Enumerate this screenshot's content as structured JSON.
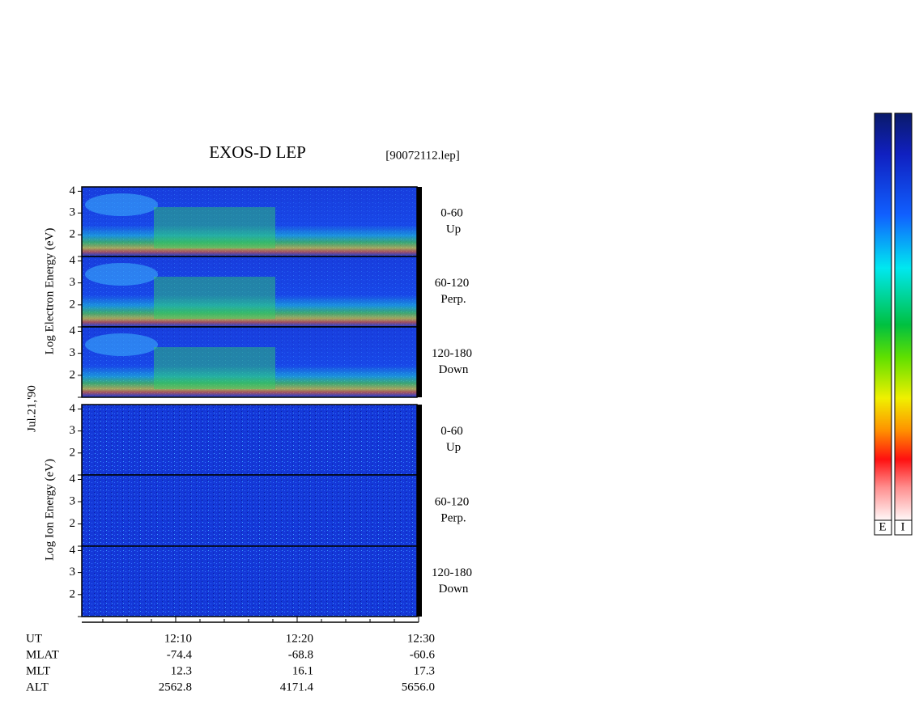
{
  "title": "EXOS-D LEP",
  "file": "[90072112.lep]",
  "date": "Jul.21,'90",
  "electron_axis_label": "Log Electron Energy (eV)",
  "ion_axis_label": "Log Ion Energy (eV)",
  "chart_data": [
    {
      "type": "spectrogram",
      "label": "0-60",
      "sublabel": "Up",
      "ylim": [
        1,
        4.2
      ],
      "yticks": [
        2,
        3,
        4
      ]
    },
    {
      "type": "spectrogram",
      "label": "60-120",
      "sublabel": "Perp.",
      "ylim": [
        1,
        4.2
      ],
      "yticks": [
        2,
        3,
        4
      ]
    },
    {
      "type": "spectrogram",
      "label": "120-180",
      "sublabel": "Down",
      "ylim": [
        1,
        4.2
      ],
      "yticks": [
        2,
        3,
        4
      ]
    },
    {
      "type": "spectrogram",
      "label": "0-60",
      "sublabel": "Up",
      "ylim": [
        1,
        4.2
      ],
      "yticks": [
        2,
        3,
        4
      ]
    },
    {
      "type": "spectrogram",
      "label": "60-120",
      "sublabel": "Perp.",
      "ylim": [
        1,
        4.2
      ],
      "yticks": [
        2,
        3,
        4
      ]
    },
    {
      "type": "spectrogram",
      "label": "120-180",
      "sublabel": "Down",
      "ylim": [
        1,
        4.2
      ],
      "yticks": [
        2,
        3,
        4
      ]
    }
  ],
  "time_axis": {
    "xlim": [
      722.27,
      750
    ],
    "xticks": [
      {
        "value": 730,
        "label": "12:10"
      },
      {
        "value": 740,
        "label": "12:20"
      },
      {
        "value": 750,
        "label": "12:30"
      }
    ],
    "minor_xticks": [
      724,
      726,
      728,
      732,
      734,
      736,
      738,
      742,
      744,
      746,
      748
    ]
  },
  "orbit": {
    "header": "UT",
    "rows": [
      [
        "MLAT",
        "-74.4",
        "-68.8",
        "-60.6"
      ],
      [
        "MLT",
        "12.3",
        "16.1",
        "17.3"
      ],
      [
        "ALT",
        "2562.8",
        "4171.4",
        "5656.0"
      ]
    ]
  },
  "colorbars": [
    "E",
    "I"
  ]
}
